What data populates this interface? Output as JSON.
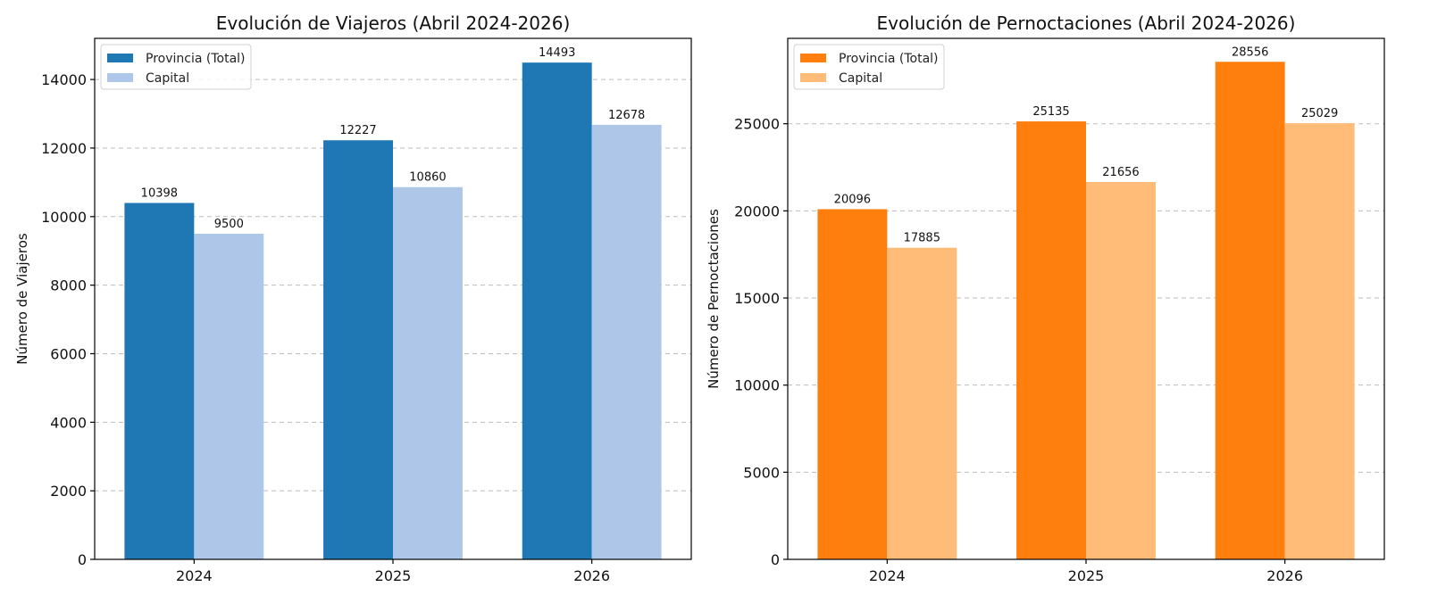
{
  "chart_data": [
    {
      "type": "bar",
      "title": "Evolución de Viajeros (Abril 2024-2026)",
      "xlabel": "",
      "ylabel": "Número de Viajeros",
      "categories": [
        "2024",
        "2025",
        "2026"
      ],
      "ylim": [
        0,
        15200
      ],
      "yticks": [
        0,
        2000,
        4000,
        6000,
        8000,
        10000,
        12000,
        14000
      ],
      "grid": true,
      "legend_position": "top-left",
      "series": [
        {
          "name": "Provincia (Total)",
          "color": "#1f77b4",
          "values": [
            10398,
            12227,
            14493
          ]
        },
        {
          "name": "Capital",
          "color": "#aec7e8",
          "values": [
            9500,
            10860,
            12678
          ]
        }
      ]
    },
    {
      "type": "bar",
      "title": "Evolución de Pernoctaciones (Abril 2024-2026)",
      "xlabel": "",
      "ylabel": "Número de Pernoctaciones",
      "categories": [
        "2024",
        "2025",
        "2026"
      ],
      "ylim": [
        0,
        29900
      ],
      "yticks": [
        0,
        5000,
        10000,
        15000,
        20000,
        25000
      ],
      "grid": true,
      "legend_position": "top-left",
      "series": [
        {
          "name": "Provincia (Total)",
          "color": "#ff7f0e",
          "values": [
            20096,
            25135,
            28556
          ]
        },
        {
          "name": "Capital",
          "color": "#ffbb78",
          "values": [
            17885,
            21656,
            25029
          ]
        }
      ]
    }
  ]
}
